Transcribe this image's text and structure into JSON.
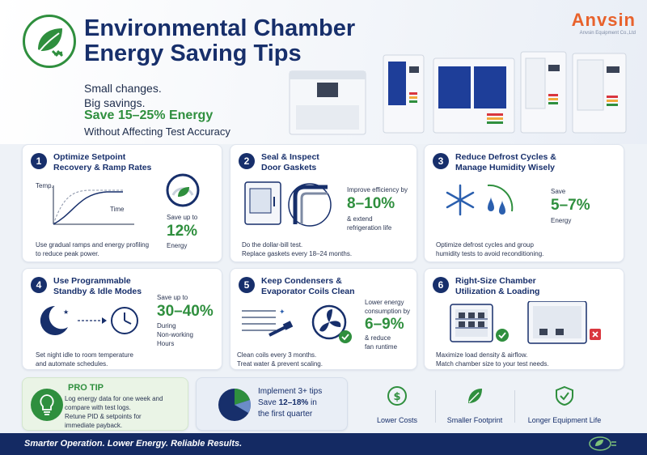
{
  "header": {
    "title_line1": "Environmental Chamber",
    "title_line2": "Energy Saving Tips",
    "tagline1": "Small changes.",
    "tagline2": "Big savings.",
    "highlight": "Save 15–25% Energy",
    "tagline3": "Without Affecting Test Accuracy",
    "brand": "Anvsin",
    "brand_sub": "Anvsin Equipment Co.,Ltd"
  },
  "tips": [
    {
      "number": "1",
      "title_line1": "Optimize Setpoint",
      "title_line2": "Recovery & Ramp Rates",
      "graph_temp": "Temp.",
      "graph_time": "Time",
      "save_prefix": "Save up to",
      "value": "12%",
      "unit": "Energy",
      "desc_line1": "Use gradual ramps and energy profiling",
      "desc_line2": "to reduce peak power."
    },
    {
      "number": "2",
      "title_line1": "Seal & Inspect",
      "title_line2": "Door Gaskets",
      "save_prefix": "Improve efficiency by",
      "value": "8–10%",
      "unit_line1": "& extend",
      "unit_line2": "refrigeration life",
      "desc_line1": "Do the dollar-bill test.",
      "desc_line2": "Replace gaskets every 18–24 months."
    },
    {
      "number": "3",
      "title_line1": "Reduce Defrost Cycles &",
      "title_line2": "Manage Humidity Wisely",
      "save_prefix": "Save",
      "value": "5–7%",
      "unit": "Energy",
      "desc_line1": "Optimize defrost cycles and group",
      "desc_line2": "humidity tests to avoid reconditioning."
    },
    {
      "number": "4",
      "title_line1": "Use Programmable",
      "title_line2": "Standby & Idle Modes",
      "save_prefix": "Save up to",
      "value": "30–40%",
      "unit_line1": "During",
      "unit_line2": "Non-working",
      "unit_line3": "Hours",
      "desc_line1": "Set night idle to room temperature",
      "desc_line2": "and automate schedules."
    },
    {
      "number": "5",
      "title_line1": "Keep Condensers &",
      "title_line2": "Evaporator Coils Clean",
      "save_prefix_line1": "Lower energy",
      "save_prefix_line2": "consumption by",
      "value": "6–9%",
      "unit_line1": "& reduce",
      "unit_line2": "fan runtime",
      "desc_line1": "Clean coils every 3 months.",
      "desc_line2": "Treat water & prevent scaling."
    },
    {
      "number": "6",
      "title_line1": "Right-Size Chamber",
      "title_line2": "Utilization & Loading",
      "desc_line1": "Maximize load density & airflow.",
      "desc_line2": "Match chamber size to your test needs."
    }
  ],
  "pro_tip": {
    "title": "PRO TIP",
    "line1": "Log energy data for one week and",
    "line2": "compare with test logs.",
    "line3": "Retune PID & setpoints for",
    "line4": "immediate payback."
  },
  "implement": {
    "line1": "Implement 3+ tips",
    "line2_prefix": "Save ",
    "line2_value": "12–18%",
    "line2_suffix": " in",
    "line3": "the first quarter"
  },
  "benefits": [
    {
      "label": "Lower Costs",
      "icon": "dollar-coin-icon"
    },
    {
      "label": "Smaller Footprint",
      "icon": "leaf-icon"
    },
    {
      "label": "Longer Equipment Life",
      "icon": "shield-check-icon"
    }
  ],
  "footer": {
    "text": "Smarter Operation. Lower Energy. Reliable Results."
  },
  "colors": {
    "navy": "#172f6b",
    "green": "#2f8f3e",
    "orange": "#e8622c",
    "red": "#d9363e",
    "footer": "#142a63"
  }
}
